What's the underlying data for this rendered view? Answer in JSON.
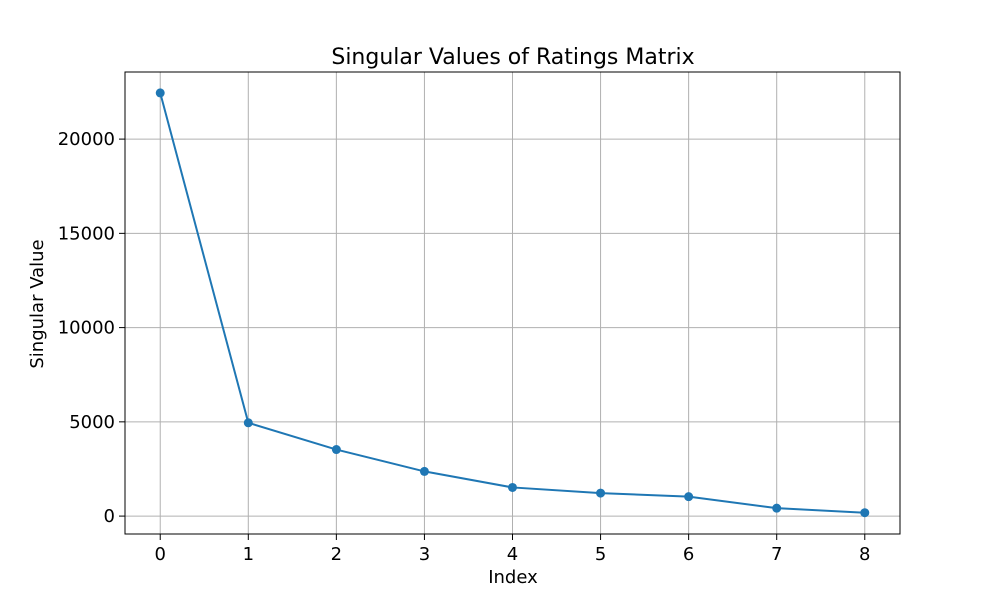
{
  "chart_data": {
    "type": "line",
    "title": "Singular Values of Ratings Matrix",
    "xlabel": "Index",
    "ylabel": "Singular Value",
    "x": [
      0,
      1,
      2,
      3,
      4,
      5,
      6,
      7,
      8
    ],
    "series": [
      {
        "values": [
          22450,
          4950,
          3530,
          2370,
          1520,
          1220,
          1030,
          420,
          180
        ],
        "color": "#1f77b4",
        "marker": "circle"
      }
    ],
    "xlim": [
      -0.4,
      8.4
    ],
    "ylim": [
      -950,
      23560
    ],
    "xticks": [
      0,
      1,
      2,
      3,
      4,
      5,
      6,
      7,
      8
    ],
    "yticks": [
      0,
      5000,
      10000,
      15000,
      20000
    ],
    "grid": true
  }
}
